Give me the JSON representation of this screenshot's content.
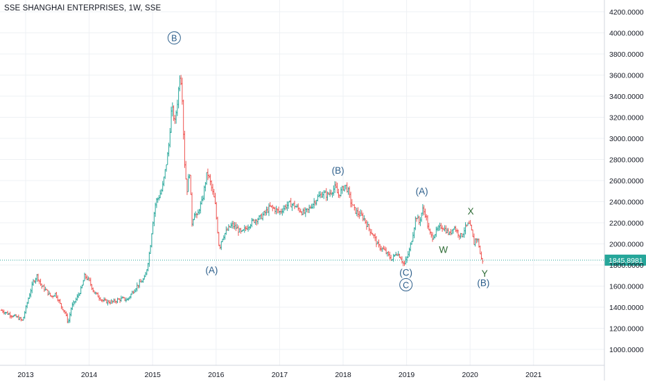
{
  "header": {
    "symbol_title": "SSE SHANGHAI ENTERPRISES, 1W, SSE"
  },
  "colors": {
    "up": "#26a69a",
    "down": "#ef5350",
    "grid": "#eef1f4",
    "axis_text": "#131722",
    "price_line": "#26a69a",
    "price_label_bg": "#26a69a",
    "wave_blue": "#2b5d8a",
    "wave_green": "#2e6b35"
  },
  "chart_data": {
    "type": "candlestick",
    "interval": "1W",
    "title": "SSE SHANGHAI ENTERPRISES, 1W, SSE",
    "x_range": [
      2012.6,
      2021.7
    ],
    "y_range": [
      840,
      4300
    ],
    "y_scale": "linear",
    "grid": true,
    "y_axis_position": "right",
    "x_ticks": [
      "2013",
      "2014",
      "2015",
      "2016",
      "2017",
      "2018",
      "2019",
      "2020",
      "2021"
    ],
    "y_ticks": [
      "1000.0000",
      "1200.0000",
      "1400.0000",
      "1600.0000",
      "1800.0000",
      "2000.0000",
      "2200.0000",
      "2400.0000",
      "2600.0000",
      "2800.0000",
      "3000.0000",
      "3200.0000",
      "3400.0000",
      "3600.0000",
      "3800.0000",
      "4000.0000",
      "4200.0000"
    ],
    "last_price": "1845.8981",
    "price_path": [
      [
        2012.62,
        1370
      ],
      [
        2012.75,
        1330
      ],
      [
        2012.88,
        1300
      ],
      [
        2012.95,
        1270
      ],
      [
        2013.05,
        1500
      ],
      [
        2013.12,
        1640
      ],
      [
        2013.18,
        1700
      ],
      [
        2013.25,
        1600
      ],
      [
        2013.32,
        1560
      ],
      [
        2013.4,
        1500
      ],
      [
        2013.47,
        1530
      ],
      [
        2013.55,
        1420
      ],
      [
        2013.62,
        1350
      ],
      [
        2013.67,
        1250
      ],
      [
        2013.72,
        1400
      ],
      [
        2013.8,
        1480
      ],
      [
        2013.88,
        1580
      ],
      [
        2013.93,
        1700
      ],
      [
        2014.0,
        1650
      ],
      [
        2014.08,
        1540
      ],
      [
        2014.15,
        1500
      ],
      [
        2014.22,
        1460
      ],
      [
        2014.3,
        1450
      ],
      [
        2014.38,
        1450
      ],
      [
        2014.45,
        1470
      ],
      [
        2014.52,
        1480
      ],
      [
        2014.6,
        1470
      ],
      [
        2014.68,
        1540
      ],
      [
        2014.75,
        1600
      ],
      [
        2014.82,
        1640
      ],
      [
        2014.88,
        1680
      ],
      [
        2014.92,
        1800
      ],
      [
        2014.96,
        1960
      ],
      [
        2015.0,
        2200
      ],
      [
        2015.05,
        2400
      ],
      [
        2015.1,
        2450
      ],
      [
        2015.15,
        2520
      ],
      [
        2015.2,
        2700
      ],
      [
        2015.25,
        2900
      ],
      [
        2015.3,
        3300
      ],
      [
        2015.35,
        3150
      ],
      [
        2015.4,
        3400
      ],
      [
        2015.43,
        3620
      ],
      [
        2015.46,
        3500
      ],
      [
        2015.5,
        2800
      ],
      [
        2015.54,
        2500
      ],
      [
        2015.58,
        2700
      ],
      [
        2015.62,
        2200
      ],
      [
        2015.66,
        2300
      ],
      [
        2015.7,
        2250
      ],
      [
        2015.74,
        2350
      ],
      [
        2015.78,
        2400
      ],
      [
        2015.82,
        2550
      ],
      [
        2015.86,
        2680
      ],
      [
        2015.9,
        2600
      ],
      [
        2015.94,
        2500
      ],
      [
        2015.98,
        2400
      ],
      [
        2016.02,
        2150
      ],
      [
        2016.05,
        1950
      ],
      [
        2016.09,
        2050
      ],
      [
        2016.14,
        2100
      ],
      [
        2016.2,
        2150
      ],
      [
        2016.25,
        2180
      ],
      [
        2016.32,
        2150
      ],
      [
        2016.4,
        2100
      ],
      [
        2016.47,
        2150
      ],
      [
        2016.55,
        2200
      ],
      [
        2016.62,
        2230
      ],
      [
        2016.7,
        2250
      ],
      [
        2016.78,
        2300
      ],
      [
        2016.85,
        2350
      ],
      [
        2016.92,
        2330
      ],
      [
        2017.0,
        2300
      ],
      [
        2017.08,
        2350
      ],
      [
        2017.15,
        2380
      ],
      [
        2017.22,
        2370
      ],
      [
        2017.3,
        2330
      ],
      [
        2017.38,
        2290
      ],
      [
        2017.45,
        2320
      ],
      [
        2017.52,
        2380
      ],
      [
        2017.6,
        2440
      ],
      [
        2017.68,
        2480
      ],
      [
        2017.75,
        2460
      ],
      [
        2017.82,
        2500
      ],
      [
        2017.88,
        2540
      ],
      [
        2017.92,
        2460
      ],
      [
        2017.97,
        2500
      ],
      [
        2018.03,
        2560
      ],
      [
        2018.08,
        2500
      ],
      [
        2018.12,
        2400
      ],
      [
        2018.18,
        2320
      ],
      [
        2018.25,
        2280
      ],
      [
        2018.32,
        2250
      ],
      [
        2018.4,
        2150
      ],
      [
        2018.48,
        2080
      ],
      [
        2018.55,
        1980
      ],
      [
        2018.63,
        1950
      ],
      [
        2018.7,
        1900
      ],
      [
        2018.77,
        1850
      ],
      [
        2018.84,
        1920
      ],
      [
        2018.9,
        1880
      ],
      [
        2018.96,
        1800
      ],
      [
        2019.0,
        1860
      ],
      [
        2019.05,
        1950
      ],
      [
        2019.1,
        2100
      ],
      [
        2019.15,
        2270
      ],
      [
        2019.2,
        2200
      ],
      [
        2019.25,
        2330
      ],
      [
        2019.3,
        2280
      ],
      [
        2019.35,
        2120
      ],
      [
        2019.4,
        2060
      ],
      [
        2019.47,
        2120
      ],
      [
        2019.55,
        2170
      ],
      [
        2019.62,
        2130
      ],
      [
        2019.68,
        2090
      ],
      [
        2019.74,
        2170
      ],
      [
        2019.8,
        2110
      ],
      [
        2019.86,
        2070
      ],
      [
        2019.92,
        2150
      ],
      [
        2019.98,
        2190
      ],
      [
        2020.02,
        2130
      ],
      [
        2020.06,
        2000
      ],
      [
        2020.09,
        2060
      ],
      [
        2020.13,
        2020
      ],
      [
        2020.17,
        1860
      ],
      [
        2020.2,
        1846
      ]
    ],
    "annotations": [
      {
        "text": "B",
        "circled": true,
        "x": 2015.34,
        "y": 3920,
        "color": "wave_blue"
      },
      {
        "text": "(B)",
        "circled": false,
        "x": 2017.92,
        "y": 2665,
        "color": "wave_blue"
      },
      {
        "text": "(A)",
        "circled": false,
        "x": 2015.93,
        "y": 1720,
        "color": "wave_blue"
      },
      {
        "text": "(A)",
        "circled": false,
        "x": 2019.24,
        "y": 2470,
        "color": "wave_blue"
      },
      {
        "text": "(C)",
        "circled": false,
        "x": 2018.99,
        "y": 1700,
        "color": "wave_blue"
      },
      {
        "text": "C",
        "circled": true,
        "x": 2018.99,
        "y": 1580,
        "color": "wave_blue"
      },
      {
        "text": "X",
        "circled": false,
        "x": 2020.01,
        "y": 2280,
        "color": "wave_green"
      },
      {
        "text": "W",
        "circled": false,
        "x": 2019.58,
        "y": 1915,
        "color": "wave_green"
      },
      {
        "text": "Y",
        "circled": false,
        "x": 2020.23,
        "y": 1690,
        "color": "wave_green"
      },
      {
        "text": "(B)",
        "circled": false,
        "x": 2020.21,
        "y": 1600,
        "color": "wave_blue"
      }
    ]
  }
}
